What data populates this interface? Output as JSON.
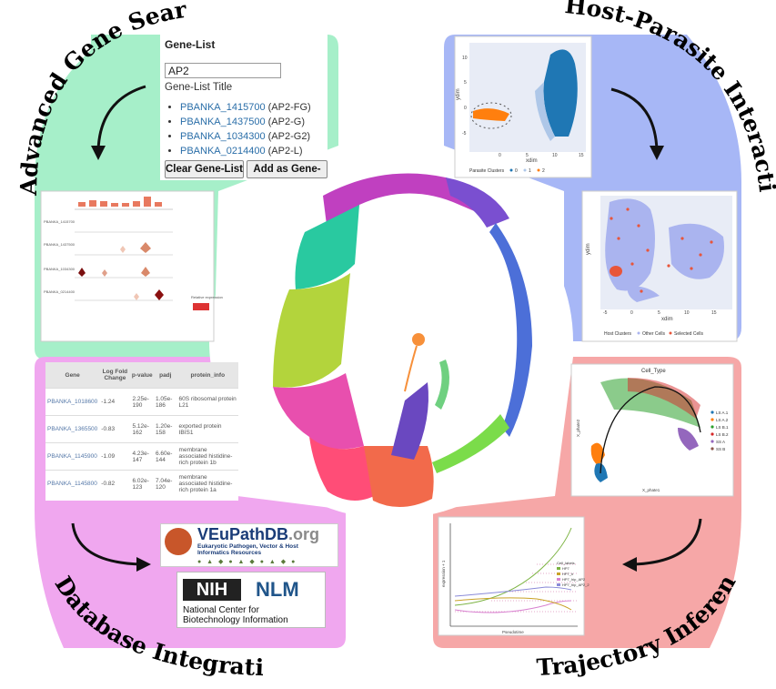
{
  "titles": {
    "gene_search": "Advanced Gene Search",
    "host_parasite": "Host-Parasite Interactions",
    "database": "Database Integration",
    "trajectory": "Trajectory Inference"
  },
  "gene_list": {
    "title": "Gene-List",
    "input_value": "AP2",
    "subtitle": "Gene-List Title",
    "items": [
      {
        "id": "PBANKA_1415700",
        "name": "(AP2-FG)"
      },
      {
        "id": "PBANKA_1437500",
        "name": "(AP2-G)"
      },
      {
        "id": "PBANKA_1034300",
        "name": "(AP2-G2)"
      },
      {
        "id": "PBANKA_0214400",
        "name": "(AP2-L)"
      }
    ],
    "clear_button": "Clear Gene-List",
    "add_button": "Add as Gene-Set"
  },
  "dotplot": {
    "rows": [
      "PBANKA_1415700",
      "PBANKA_1437500",
      "PBANKA_1034300",
      "PBANKA_0214400"
    ],
    "legend_title": "Relative expression",
    "legend_min": "0",
    "legend_max": "1"
  },
  "parasite_umap": {
    "xlabel": "xdim",
    "ylabel": "ydim",
    "xticks": [
      "0",
      "5",
      "10",
      "15"
    ],
    "yticks": [
      "-5",
      "0",
      "5",
      "10"
    ],
    "legend_title": "Parasite Clusters",
    "legend": [
      "0",
      "1",
      "2"
    ],
    "colors": [
      "#1f77b4",
      "#aec7e8",
      "#ff7f0e"
    ]
  },
  "host_umap": {
    "xlabel": "xdim",
    "ylabel": "ydim",
    "xticks": [
      "-5",
      "0",
      "5",
      "10",
      "15"
    ],
    "yticks": [
      "-5",
      "0",
      "5",
      "10",
      "15"
    ],
    "legend_title": "Host Clusters",
    "legend": [
      "Other Cells",
      "Selected Cells"
    ],
    "colors": [
      "#aab4ef",
      "#e8553a"
    ]
  },
  "de_table": {
    "headers": [
      "Gene",
      "Log Fold Change",
      "p-value",
      "padj",
      "protein_info"
    ],
    "rows": [
      [
        "PBANKA_1018600",
        "-1.24",
        "2.25e-190",
        "1.05e-186",
        "60S ribosomal protein L21"
      ],
      [
        "PBANKA_1365500",
        "-0.83",
        "5.12e-162",
        "1.20e-158",
        "exported protein IBIS1"
      ],
      [
        "PBANKA_1145900",
        "-1.09",
        "4.23e-147",
        "6.60e-144",
        "membrane associated histidine-rich protein 1b"
      ],
      [
        "PBANKA_1145800",
        "-0.82",
        "6.02e-123",
        "7.04e-120",
        "membrane associated histidine-rich protein 1a"
      ]
    ]
  },
  "vpdb": {
    "name": "VEuPathDB",
    "suffix": ".org",
    "tagline1": "Eukaryotic Pathogen, Vector & Host",
    "tagline2": "Informatics Resources"
  },
  "ncbi": {
    "nih": "NIH",
    "nlm": "NLM",
    "line1": "National Center for",
    "line2": "Biotechnology Information"
  },
  "trajectory_plot": {
    "title": "Cell_Type",
    "xlabel": "X_phate1",
    "ylabel": "X_phate2",
    "legend": [
      "LS A.1",
      "LS A.2",
      "LS B.1",
      "LS B.2",
      "SS A",
      "SS B"
    ],
    "colors": [
      "#1f77b4",
      "#ff7f0e",
      "#2ca02c",
      "#d62728",
      "#9467bd",
      "#8c564b"
    ]
  },
  "pseudotime_plot": {
    "xlabel": "Pseudotime",
    "ylabel": "expression + 1",
    "legend_title": "Cell_labels",
    "legend": [
      "HP7",
      "HP7_h",
      "HP7_hip_AP2",
      "HP7_hip_AP2_2"
    ],
    "colors": [
      "#7cb342",
      "#c9a227",
      "#d881d0",
      "#8a8ad8"
    ]
  },
  "center_umap": {
    "colors": [
      "#e84fae",
      "#c040c0",
      "#7a4fd0",
      "#4c6fd8",
      "#29c9a0",
      "#b3d43c",
      "#f26a4b",
      "#f7903a",
      "#7bdc4a",
      "#ff4d77"
    ]
  },
  "colors": {
    "green": "#a6efc9",
    "blue": "#a7b7f6",
    "pink": "#f0a7ef",
    "red": "#f6a7a7"
  }
}
